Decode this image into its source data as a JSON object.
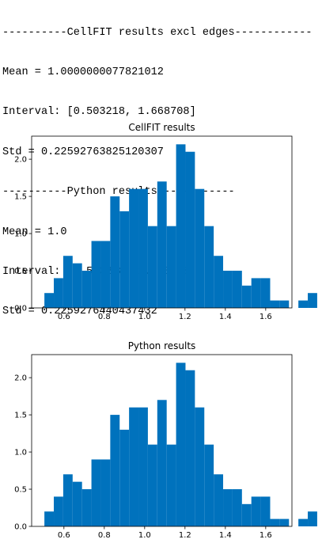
{
  "console": {
    "lines": [
      "----------CellFIT results excl edges------------",
      "Mean = 1.0000000077821012",
      "Interval: [0.503218, 1.668708]",
      "Std = 0.22592763825120307",
      "----------Python results------------",
      "Mean = 1.0",
      "Interval: [0.503218, 1.668708]",
      "Std = 0.2259276440437432"
    ]
  },
  "chart_data": [
    {
      "type": "bar",
      "title": "CellFIT results",
      "xlabel": "",
      "ylabel": "",
      "bin_start": 0.503218,
      "bin_width": 0.0466196,
      "values": [
        0.2,
        0.4,
        0.7,
        0.6,
        0.5,
        0.9,
        0.9,
        1.5,
        1.3,
        1.6,
        1.6,
        1.1,
        1.7,
        1.1,
        2.2,
        2.1,
        1.6,
        1.1,
        0.7,
        0.5,
        0.5,
        0.3,
        0.4,
        0.4,
        0.1,
        0.1,
        0.0,
        0.1,
        0.2
      ],
      "xlim": [
        0.44,
        1.73
      ],
      "ylim": [
        0,
        2.31
      ],
      "xticks": [
        "0.6",
        "0.8",
        "1.0",
        "1.2",
        "1.4",
        "1.6"
      ],
      "xtick_values": [
        0.6,
        0.8,
        1.0,
        1.2,
        1.4,
        1.6
      ],
      "yticks": [
        "0.0",
        "0.5",
        "1.0",
        "1.5",
        "2.0"
      ],
      "ytick_values": [
        0.0,
        0.5,
        1.0,
        1.5,
        2.0
      ],
      "color": "#0072bd"
    },
    {
      "type": "bar",
      "title": "Python results",
      "xlabel": "",
      "ylabel": "",
      "bin_start": 0.503218,
      "bin_width": 0.0466196,
      "values": [
        0.2,
        0.4,
        0.7,
        0.6,
        0.5,
        0.9,
        0.9,
        1.5,
        1.3,
        1.6,
        1.6,
        1.1,
        1.7,
        1.1,
        2.2,
        2.1,
        1.6,
        1.1,
        0.7,
        0.5,
        0.5,
        0.3,
        0.4,
        0.4,
        0.1,
        0.1,
        0.0,
        0.1,
        0.2
      ],
      "xlim": [
        0.44,
        1.73
      ],
      "ylim": [
        0,
        2.31
      ],
      "xticks": [
        "0.6",
        "0.8",
        "1.0",
        "1.2",
        "1.4",
        "1.6"
      ],
      "xtick_values": [
        0.6,
        0.8,
        1.0,
        1.2,
        1.4,
        1.6
      ],
      "yticks": [
        "0.0",
        "0.5",
        "1.0",
        "1.5",
        "2.0"
      ],
      "ytick_values": [
        0.0,
        0.5,
        1.0,
        1.5,
        2.0
      ],
      "color": "#0072bd"
    }
  ]
}
